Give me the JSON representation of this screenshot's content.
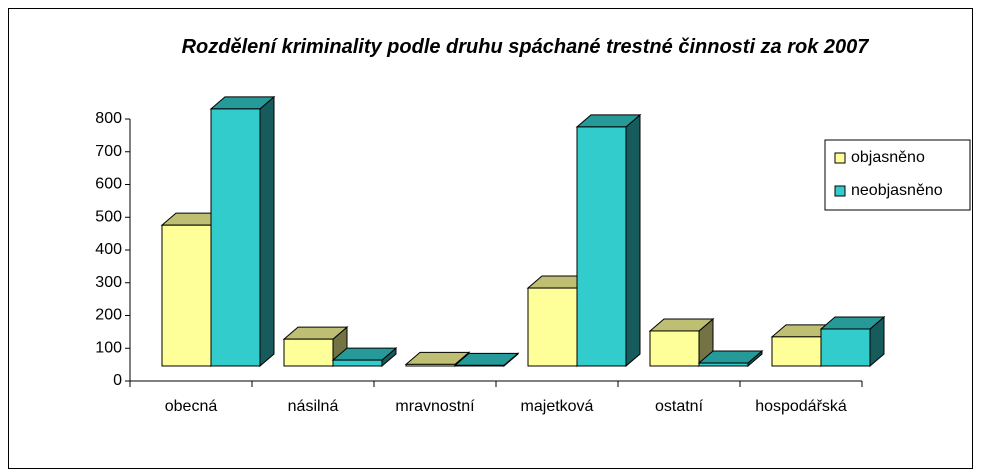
{
  "chart_data": {
    "type": "bar3d",
    "title": "Rozdělení kriminality podle druhu spáchané trestné činnosti za rok 2007",
    "categories": [
      "obecná",
      "násilná",
      "mravnostní",
      "majetková",
      "ostatní",
      "hospodářská"
    ],
    "series": [
      {
        "name": "objasněno",
        "color": "#ffff99",
        "values": [
          430,
          82,
          5,
          238,
          107,
          89
        ]
      },
      {
        "name": "neobjasněno",
        "color": "#33cccc",
        "values": [
          785,
          18,
          2,
          730,
          9,
          113
        ]
      }
    ],
    "ylim": [
      0,
      800
    ],
    "yticks": [
      0,
      100,
      200,
      300,
      400,
      500,
      600,
      700,
      800
    ],
    "legend": "right"
  }
}
